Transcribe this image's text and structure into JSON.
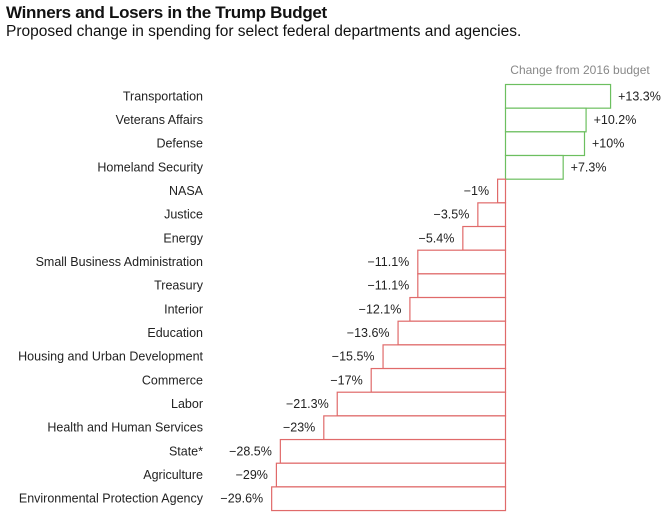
{
  "chart_data": {
    "type": "bar",
    "orientation": "horizontal",
    "title": "Winners and Losers in the Trump Budget",
    "subtitle": "Proposed change in spending for select federal departments and agencies.",
    "legend": "Change from 2016 budget",
    "categories": [
      "Transportation",
      "Veterans Affairs",
      "Defense",
      "Homeland Security",
      "NASA",
      "Justice",
      "Energy",
      "Small Business Administration",
      "Treasury",
      "Interior",
      "Education",
      "Housing and Urban Development",
      "Commerce",
      "Labor",
      "Health and Human Services",
      "State*",
      "Agriculture",
      "Environmental Protection Agency"
    ],
    "values": [
      13.3,
      10.2,
      10,
      7.3,
      -1,
      -3.5,
      -5.4,
      -11.1,
      -11.1,
      -12.1,
      -13.6,
      -15.5,
      -17,
      -21.3,
      -23,
      -28.5,
      -29,
      -29.6
    ],
    "value_labels": [
      "+13.3%",
      "+10.2%",
      "+10%",
      "+7.3%",
      "−1%",
      "−3.5%",
      "−5.4%",
      "−11.1%",
      "−11.1%",
      "−12.1%",
      "−13.6%",
      "−15.5%",
      "−17%",
      "−21.3%",
      "−23%",
      "−28.5%",
      "−29%",
      "−29.6%"
    ],
    "colors": {
      "positive": "#6cbf5f",
      "negative": "#e06a6a"
    },
    "grid": false
  }
}
